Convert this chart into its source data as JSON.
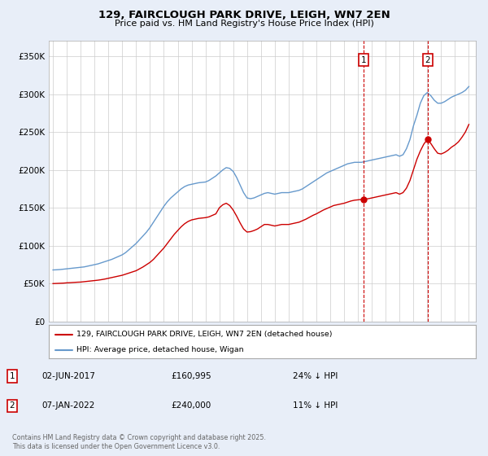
{
  "title": "129, FAIRCLOUGH PARK DRIVE, LEIGH, WN7 2EN",
  "subtitle": "Price paid vs. HM Land Registry's House Price Index (HPI)",
  "footer": "Contains HM Land Registry data © Crown copyright and database right 2025.\nThis data is licensed under the Open Government Licence v3.0.",
  "legend_label_red": "129, FAIRCLOUGH PARK DRIVE, LEIGH, WN7 2EN (detached house)",
  "legend_label_blue": "HPI: Average price, detached house, Wigan",
  "annotation1": {
    "label": "1",
    "date": "02-JUN-2017",
    "price": "£160,995",
    "hpi": "24% ↓ HPI"
  },
  "annotation2": {
    "label": "2",
    "date": "07-JAN-2022",
    "price": "£240,000",
    "hpi": "11% ↓ HPI"
  },
  "ylim": [
    0,
    370000
  ],
  "yticks": [
    0,
    50000,
    100000,
    150000,
    200000,
    250000,
    300000,
    350000
  ],
  "ytick_labels": [
    "£0",
    "£50K",
    "£100K",
    "£150K",
    "£200K",
    "£250K",
    "£300K",
    "£350K"
  ],
  "background_color": "#e8eef8",
  "plot_bg_color": "#ffffff",
  "grid_color": "#cccccc",
  "red_color": "#cc0000",
  "blue_color": "#6699cc",
  "sale1_year": 2017.42,
  "sale1_price": 160995,
  "sale2_year": 2022.02,
  "sale2_price": 240000,
  "hpi_years": [
    1995,
    1995.25,
    1995.5,
    1995.75,
    1996,
    1996.25,
    1996.5,
    1996.75,
    1997,
    1997.25,
    1997.5,
    1997.75,
    1998,
    1998.25,
    1998.5,
    1998.75,
    1999,
    1999.25,
    1999.5,
    1999.75,
    2000,
    2000.25,
    2000.5,
    2000.75,
    2001,
    2001.25,
    2001.5,
    2001.75,
    2002,
    2002.25,
    2002.5,
    2002.75,
    2003,
    2003.25,
    2003.5,
    2003.75,
    2004,
    2004.25,
    2004.5,
    2004.75,
    2005,
    2005.25,
    2005.5,
    2005.75,
    2006,
    2006.25,
    2006.5,
    2006.75,
    2007,
    2007.25,
    2007.5,
    2007.75,
    2008,
    2008.25,
    2008.5,
    2008.75,
    2009,
    2009.25,
    2009.5,
    2009.75,
    2010,
    2010.25,
    2010.5,
    2010.75,
    2011,
    2011.25,
    2011.5,
    2011.75,
    2012,
    2012.25,
    2012.5,
    2012.75,
    2013,
    2013.25,
    2013.5,
    2013.75,
    2014,
    2014.25,
    2014.5,
    2014.75,
    2015,
    2015.25,
    2015.5,
    2015.75,
    2016,
    2016.25,
    2016.5,
    2016.75,
    2017,
    2017.25,
    2017.5,
    2017.75,
    2018,
    2018.25,
    2018.5,
    2018.75,
    2019,
    2019.25,
    2019.5,
    2019.75,
    2020,
    2020.25,
    2020.5,
    2020.75,
    2021,
    2021.25,
    2021.5,
    2021.75,
    2022,
    2022.25,
    2022.5,
    2022.75,
    2023,
    2023.25,
    2023.5,
    2023.75,
    2024,
    2024.25,
    2024.5,
    2024.75,
    2025
  ],
  "hpi_values": [
    68000,
    68200,
    68500,
    69000,
    69500,
    70000,
    70500,
    71000,
    71500,
    72000,
    73000,
    74000,
    75000,
    76000,
    77500,
    79000,
    80500,
    82000,
    84000,
    86000,
    88000,
    91000,
    95000,
    99000,
    103000,
    108000,
    113000,
    118000,
    124000,
    131000,
    138000,
    145000,
    152000,
    158000,
    163000,
    167000,
    171000,
    175000,
    178000,
    180000,
    181000,
    182000,
    183000,
    183500,
    184000,
    186000,
    189000,
    192000,
    196000,
    200000,
    203000,
    202000,
    198000,
    190000,
    180000,
    170000,
    163000,
    162000,
    163000,
    165000,
    167000,
    169000,
    170000,
    169000,
    168000,
    169000,
    170000,
    170000,
    170000,
    171000,
    172000,
    173000,
    175000,
    178000,
    181000,
    184000,
    187000,
    190000,
    193000,
    196000,
    198000,
    200000,
    202000,
    204000,
    206000,
    208000,
    209000,
    210000,
    210000,
    210000,
    211000,
    212000,
    213000,
    214000,
    215000,
    216000,
    217000,
    218000,
    219000,
    220000,
    218000,
    220000,
    228000,
    240000,
    258000,
    272000,
    288000,
    298000,
    302000,
    298000,
    292000,
    288000,
    288000,
    290000,
    293000,
    296000,
    298000,
    300000,
    302000,
    305000,
    310000
  ],
  "red_years": [
    1995,
    1995.25,
    1995.5,
    1995.75,
    1996,
    1996.25,
    1996.5,
    1996.75,
    1997,
    1997.25,
    1997.5,
    1997.75,
    1998,
    1998.25,
    1998.5,
    1998.75,
    1999,
    1999.25,
    1999.5,
    1999.75,
    2000,
    2000.25,
    2000.5,
    2000.75,
    2001,
    2001.25,
    2001.5,
    2001.75,
    2002,
    2002.25,
    2002.5,
    2002.75,
    2003,
    2003.25,
    2003.5,
    2003.75,
    2004,
    2004.25,
    2004.5,
    2004.75,
    2005,
    2005.25,
    2005.5,
    2005.75,
    2006,
    2006.25,
    2006.5,
    2006.75,
    2007,
    2007.25,
    2007.5,
    2007.75,
    2008,
    2008.25,
    2008.5,
    2008.75,
    2009,
    2009.25,
    2009.5,
    2009.75,
    2010,
    2010.25,
    2010.5,
    2010.75,
    2011,
    2011.25,
    2011.5,
    2011.75,
    2012,
    2012.25,
    2012.5,
    2012.75,
    2013,
    2013.25,
    2013.5,
    2013.75,
    2014,
    2014.25,
    2014.5,
    2014.75,
    2015,
    2015.25,
    2015.5,
    2015.75,
    2016,
    2016.25,
    2016.5,
    2016.75,
    2017,
    2017.25,
    2017.5,
    2017.75,
    2018,
    2018.25,
    2018.5,
    2018.75,
    2019,
    2019.25,
    2019.5,
    2019.75,
    2020,
    2020.25,
    2020.5,
    2020.75,
    2021,
    2021.25,
    2021.5,
    2021.75,
    2022,
    2022.25,
    2022.5,
    2022.75,
    2023,
    2023.25,
    2023.5,
    2023.75,
    2024,
    2024.25,
    2024.5,
    2024.75,
    2025
  ],
  "red_values": [
    50000,
    50200,
    50400,
    50600,
    51000,
    51200,
    51500,
    51800,
    52000,
    52500,
    53000,
    53500,
    54000,
    54500,
    55200,
    56000,
    57000,
    58000,
    59000,
    60000,
    61000,
    62500,
    64000,
    65500,
    67000,
    69500,
    72000,
    75000,
    78000,
    82000,
    87000,
    92000,
    97000,
    103000,
    109000,
    115000,
    120000,
    125000,
    129000,
    132000,
    134000,
    135000,
    136000,
    136500,
    137000,
    138000,
    140000,
    142000,
    150000,
    154000,
    156000,
    153000,
    147000,
    139000,
    130000,
    122000,
    118000,
    118500,
    120000,
    122000,
    125000,
    128000,
    128000,
    127000,
    126000,
    127000,
    128000,
    128000,
    128000,
    129000,
    130000,
    131000,
    133000,
    135000,
    137500,
    140000,
    142000,
    144500,
    147000,
    149000,
    151000,
    153000,
    154000,
    155000,
    156000,
    157500,
    159000,
    160000,
    160500,
    160995,
    161500,
    162000,
    163000,
    164000,
    165000,
    166000,
    167000,
    168000,
    169000,
    170000,
    168000,
    170000,
    176000,
    186000,
    200000,
    214000,
    225000,
    234000,
    240000,
    235000,
    228000,
    222000,
    221000,
    223000,
    226000,
    230000,
    233000,
    237000,
    243000,
    250000,
    260000
  ],
  "sale1_vline_year": 2017.42,
  "sale2_vline_year": 2022.02,
  "xlim_start": 1994.7,
  "xlim_end": 2025.5
}
